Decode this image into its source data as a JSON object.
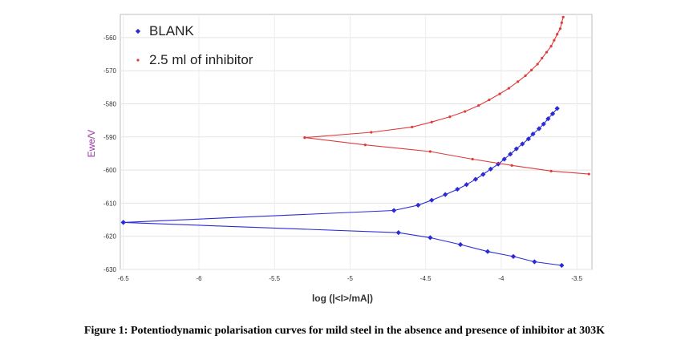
{
  "caption": "Figure 1: Potentiodynamic polarisation curves for mild steel in the absence and presence of inhibitor at 303K",
  "chart_data": {
    "type": "line",
    "title": "",
    "xlabel": "log (|<I>/mA|)",
    "ylabel": "Ewe/V",
    "xlim": [
      -6.52,
      -3.4
    ],
    "ylim": [
      -630,
      -553
    ],
    "x_ticks": [
      -6.5,
      -6,
      -5.5,
      -5,
      -4.5,
      -4,
      -3.5
    ],
    "x_tick_labels": [
      "-6.5",
      "-6",
      "-5.5",
      "-5",
      "-4.5",
      "-4",
      "-3.5"
    ],
    "y_ticks": [
      -560,
      -570,
      -580,
      -590,
      -600,
      -610,
      -620,
      -630
    ],
    "y_tick_labels": [
      "-560",
      "-570",
      "-580",
      "-590",
      "-600",
      "-610",
      "-620",
      "-630"
    ],
    "grid": true,
    "legend_position": "top-left",
    "series": [
      {
        "name": "BLANK",
        "color": "#2b2bd6",
        "marker": "diamond",
        "branches": [
          [
            [
              -6.5,
              -615.8
            ],
            [
              -4.71,
              -612.2
            ],
            [
              -4.55,
              -610.6
            ],
            [
              -4.46,
              -609.1
            ],
            [
              -4.37,
              -607.4
            ],
            [
              -4.29,
              -605.8
            ],
            [
              -4.23,
              -604.4
            ],
            [
              -4.17,
              -602.8
            ],
            [
              -4.12,
              -601.3
            ],
            [
              -4.07,
              -599.7
            ],
            [
              -4.02,
              -598.2
            ],
            [
              -3.98,
              -596.7
            ],
            [
              -3.94,
              -595.2
            ],
            [
              -3.9,
              -593.6
            ],
            [
              -3.86,
              -592.1
            ],
            [
              -3.82,
              -590.6
            ],
            [
              -3.79,
              -589.1
            ],
            [
              -3.75,
              -587.5
            ],
            [
              -3.72,
              -586.1
            ],
            [
              -3.69,
              -584.5
            ],
            [
              -3.66,
              -583.0
            ],
            [
              -3.63,
              -581.4
            ]
          ],
          [
            [
              -6.5,
              -615.8
            ],
            [
              -4.68,
              -618.9
            ],
            [
              -4.47,
              -620.4
            ],
            [
              -4.27,
              -622.5
            ],
            [
              -4.09,
              -624.6
            ],
            [
              -3.92,
              -626.1
            ],
            [
              -3.78,
              -627.7
            ],
            [
              -3.6,
              -628.8
            ]
          ]
        ]
      },
      {
        "name": "2.5 ml of inhibitor",
        "color": "#e03b3b",
        "marker": "dot",
        "branches": [
          [
            [
              -5.3,
              -590.2
            ],
            [
              -4.86,
              -588.6
            ],
            [
              -4.59,
              -587.0
            ],
            [
              -4.46,
              -585.5
            ],
            [
              -4.34,
              -583.9
            ],
            [
              -4.24,
              -582.3
            ],
            [
              -4.15,
              -580.5
            ],
            [
              -4.08,
              -578.8
            ],
            [
              -4.01,
              -577.0
            ],
            [
              -3.95,
              -575.3
            ],
            [
              -3.89,
              -573.3
            ],
            [
              -3.84,
              -571.5
            ],
            [
              -3.8,
              -569.8
            ],
            [
              -3.76,
              -568.0
            ],
            [
              -3.73,
              -566.2
            ],
            [
              -3.7,
              -564.4
            ],
            [
              -3.67,
              -562.6
            ],
            [
              -3.65,
              -560.8
            ],
            [
              -3.63,
              -559.0
            ],
            [
              -3.61,
              -557.3
            ],
            [
              -3.6,
              -555.5
            ],
            [
              -3.59,
              -553.8
            ]
          ],
          [
            [
              -5.3,
              -590.2
            ],
            [
              -4.9,
              -592.4
            ],
            [
              -4.47,
              -594.4
            ],
            [
              -4.19,
              -596.7
            ],
            [
              -3.93,
              -598.6
            ],
            [
              -3.67,
              -600.3
            ],
            [
              -3.42,
              -601.2
            ]
          ]
        ]
      }
    ]
  }
}
